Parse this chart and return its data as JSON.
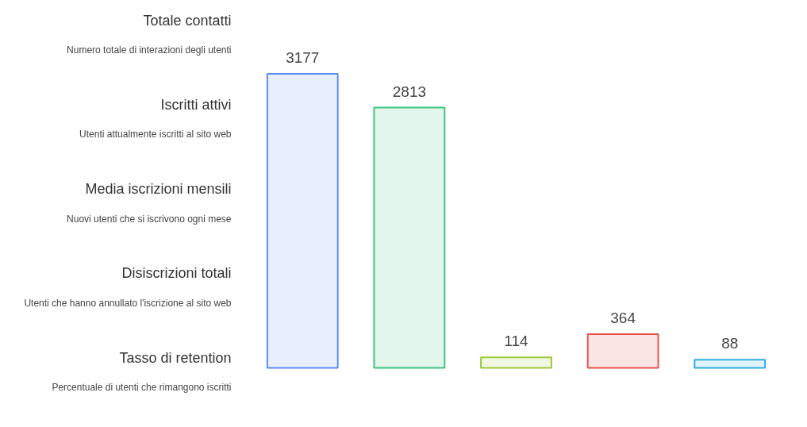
{
  "chart_data": {
    "type": "bar",
    "categories": [
      null,
      null,
      null,
      null,
      null
    ],
    "values": [
      3177,
      2813,
      114,
      364,
      88
    ],
    "colors": [
      "#5b8def",
      "#3ec47e",
      "#9cc93b",
      "#e5534b",
      "#2eaee0"
    ],
    "annotations": [
      "Totale contatti",
      "Numero totale di interazioni degli utenti",
      "Iscritti attivi",
      "Utenti attualmente iscritti al sito web",
      "Media iscrizioni mensili",
      "Nuovi utenti che si iscrivono ogni mese",
      "Disiscrizioni totali",
      "Utenti che hanno annullato l'iscrizione al sito web",
      "Tasso di retention",
      "Percentuale di utenti che rimangono iscritti"
    ],
    "data_labels": true,
    "grid": false
  }
}
